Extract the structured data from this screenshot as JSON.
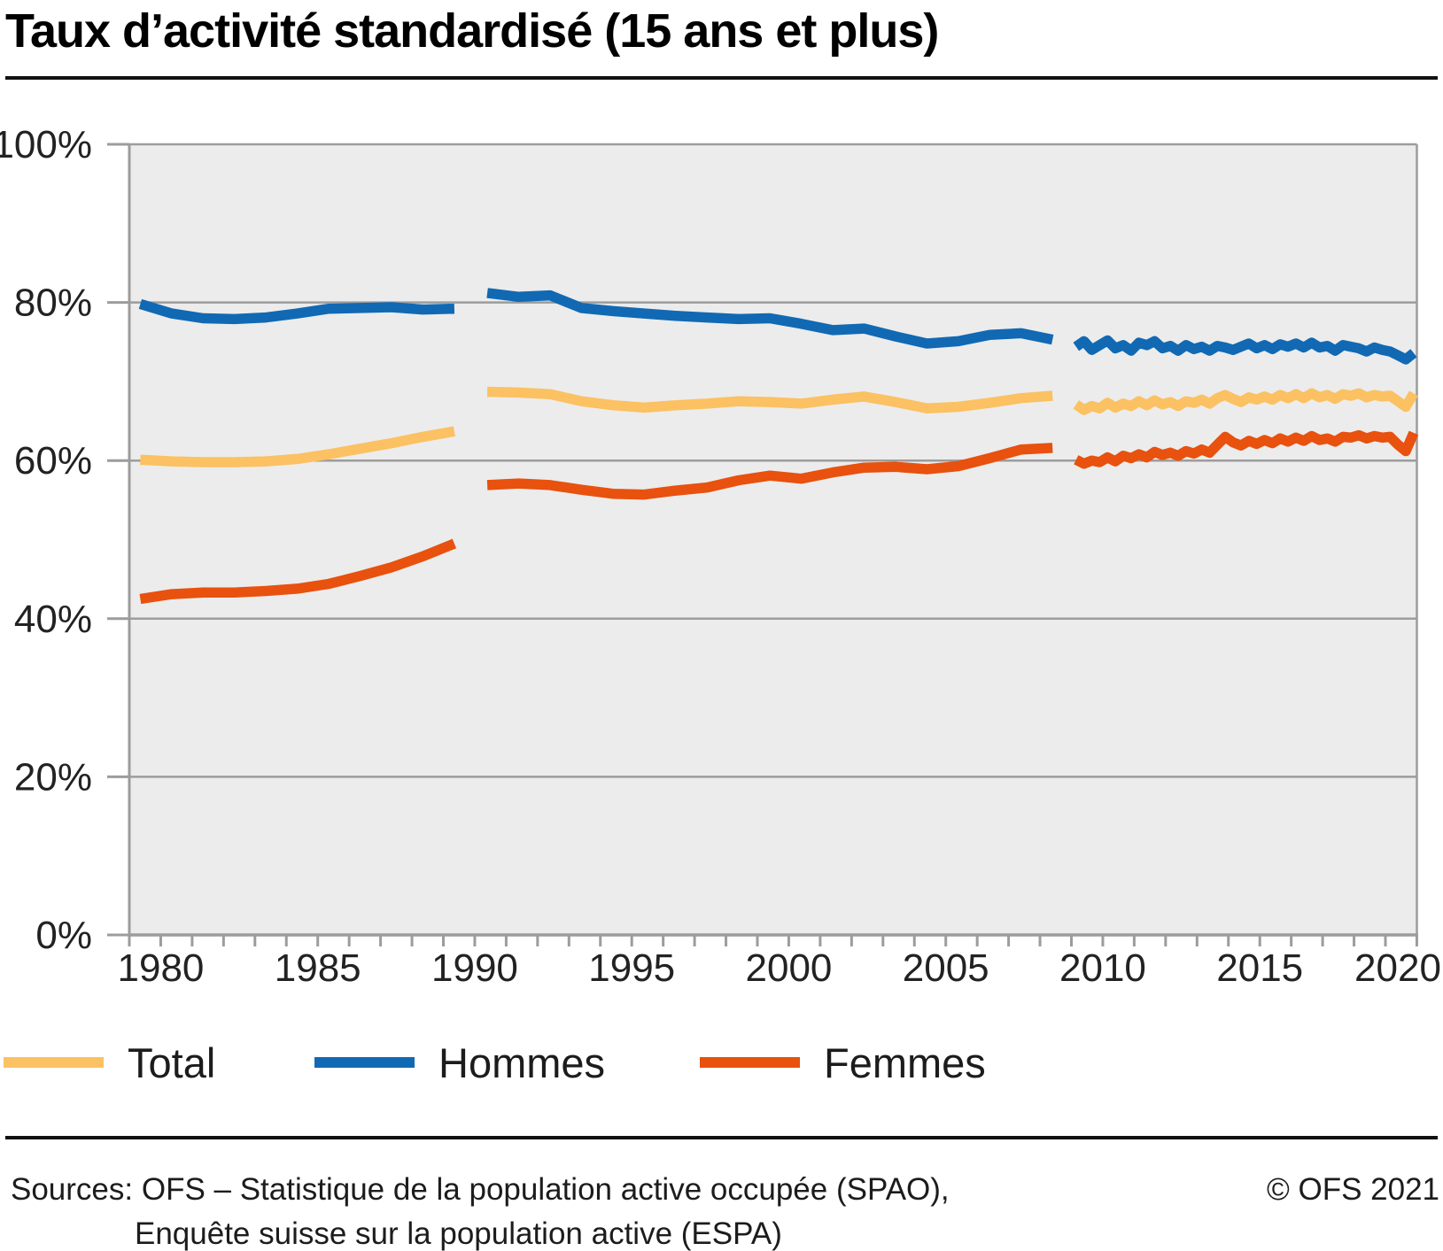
{
  "title": "Taux d’activité standardisé (15 ans et plus)",
  "legend": {
    "items": [
      {
        "label": "Total",
        "color": "#fbc162"
      },
      {
        "label": "Hommes",
        "color": "#1169b3"
      },
      {
        "label": "Femmes",
        "color": "#e8510e"
      }
    ]
  },
  "footer": {
    "sources_line1": "Sources: OFS – Statistique de la population active occupée (SPAO),",
    "sources_line2": "Enquête suisse sur la population active (ESPA)",
    "copyright": "© OFS 2021"
  },
  "chart_data": {
    "type": "line",
    "title": "Taux d’activité standardisé (15 ans et plus)",
    "grid": true,
    "legend_position": "bottom",
    "plot_background": "#ececec",
    "grid_color": "#9c9c9c",
    "y_axis": {
      "min": 0,
      "max": 100,
      "step": 20,
      "labels": [
        "0%",
        "20%",
        "40%",
        "60%",
        "80%",
        "100%"
      ]
    },
    "x_axis": {
      "tick_start": 1979,
      "tick_end": 2020,
      "tick_step": 1,
      "label_years": [
        1980,
        1985,
        1990,
        1995,
        2000,
        2005,
        2010,
        2015,
        2020
      ]
    },
    "series": [
      {
        "name": "Total",
        "color": "#fbc162",
        "segments": [
          {
            "start": 1979.35,
            "step": 1,
            "values": [
              60.1,
              59.9,
              59.8,
              59.8,
              59.9,
              60.2,
              60.8,
              61.5,
              62.2,
              63.0,
              63.7
            ]
          },
          {
            "start": 1990.4,
            "step": 1,
            "values": [
              68.7,
              68.6,
              68.4,
              67.5,
              67.0,
              66.7,
              67.0,
              67.2,
              67.5,
              67.4,
              67.2,
              67.7,
              68.1,
              67.4,
              66.6,
              66.8,
              67.3,
              67.9,
              68.2
            ]
          },
          {
            "start": 2009.15,
            "step": 0.25,
            "values": [
              67.1,
              66.4,
              66.9,
              66.6,
              67.3,
              66.7,
              67.2,
              66.9,
              67.5,
              67.0,
              67.6,
              67.1,
              67.4,
              66.9,
              67.5,
              67.3,
              67.7,
              67.2,
              67.9,
              68.3,
              67.8,
              67.4,
              68.0,
              67.7,
              68.1,
              67.7,
              68.3,
              67.9,
              68.4,
              67.9,
              68.5,
              68.0,
              68.3,
              67.8,
              68.4,
              68.2,
              68.5,
              68.0,
              68.3,
              68.1,
              68.2,
              67.5,
              66.8,
              68.5
            ]
          }
        ]
      },
      {
        "name": "Hommes",
        "color": "#1169b3",
        "segments": [
          {
            "start": 1979.35,
            "step": 1,
            "values": [
              79.8,
              78.6,
              78.0,
              77.9,
              78.1,
              78.6,
              79.2,
              79.3,
              79.4,
              79.1,
              79.2
            ]
          },
          {
            "start": 1990.4,
            "step": 1,
            "values": [
              81.2,
              80.7,
              80.9,
              79.3,
              78.9,
              78.6,
              78.3,
              78.1,
              77.9,
              78.0,
              77.3,
              76.5,
              76.7,
              75.7,
              74.8,
              75.1,
              75.9,
              76.1,
              75.3
            ]
          },
          {
            "start": 2009.15,
            "step": 0.25,
            "values": [
              74.4,
              75.1,
              74.0,
              74.6,
              75.2,
              74.2,
              74.6,
              73.9,
              74.9,
              74.6,
              75.1,
              74.2,
              74.5,
              73.9,
              74.6,
              74.1,
              74.4,
              73.9,
              74.5,
              74.3,
              74.0,
              74.4,
              74.8,
              74.2,
              74.6,
              74.1,
              74.7,
              74.4,
              74.8,
              74.3,
              74.9,
              74.3,
              74.5,
              73.9,
              74.6,
              74.4,
              74.2,
              73.8,
              74.3,
              74.0,
              73.8,
              73.3,
              72.8,
              73.6
            ]
          }
        ]
      },
      {
        "name": "Femmes",
        "color": "#e8510e",
        "segments": [
          {
            "start": 1979.35,
            "step": 1,
            "values": [
              42.5,
              43.1,
              43.3,
              43.3,
              43.5,
              43.8,
              44.4,
              45.4,
              46.5,
              47.9,
              49.5
            ]
          },
          {
            "start": 1990.4,
            "step": 1,
            "values": [
              56.9,
              57.1,
              56.9,
              56.3,
              55.8,
              55.7,
              56.2,
              56.6,
              57.5,
              58.1,
              57.7,
              58.5,
              59.1,
              59.2,
              58.9,
              59.3,
              60.3,
              61.4,
              61.6
            ]
          },
          {
            "start": 2009.15,
            "step": 0.25,
            "values": [
              60.1,
              59.6,
              60.0,
              59.8,
              60.4,
              59.9,
              60.6,
              60.3,
              60.8,
              60.4,
              61.1,
              60.7,
              61.0,
              60.6,
              61.2,
              60.9,
              61.4,
              61.0,
              62.0,
              63.0,
              62.3,
              61.9,
              62.5,
              62.1,
              62.6,
              62.2,
              62.8,
              62.4,
              62.9,
              62.5,
              63.1,
              62.6,
              62.8,
              62.4,
              63.0,
              62.9,
              63.2,
              62.8,
              63.1,
              62.9,
              63.0,
              62.0,
              61.2,
              63.5
            ]
          }
        ]
      }
    ]
  }
}
